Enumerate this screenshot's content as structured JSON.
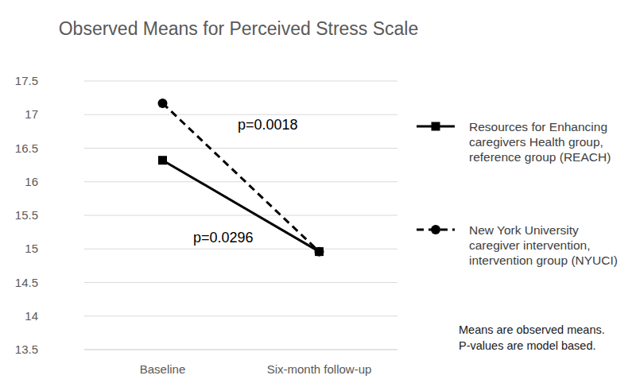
{
  "chart_data": {
    "type": "line",
    "title": "Observed Means for Perceived Stress Scale",
    "categories": [
      "Baseline",
      "Six-month follow-up"
    ],
    "series": [
      {
        "name": "Resources for Enhancing caregivers Health group, reference group (REACH)",
        "color": "#000000",
        "values": [
          16.32,
          14.96
        ],
        "marker": "square",
        "line_style": "solid",
        "annotation": "p=0.0296"
      },
      {
        "name": "New York University caregiver intervention, intervention group (NYUCI)",
        "color": "#000000",
        "values": [
          17.17,
          14.96
        ],
        "marker": "circle",
        "line_style": "dashed",
        "annotation": "p=0.0018"
      }
    ],
    "ylim": [
      13.5,
      17.5
    ],
    "yticks": [
      13.5,
      14,
      14.5,
      15,
      15.5,
      16,
      16.5,
      17,
      17.5
    ],
    "grid": true,
    "legend": "right",
    "notes": [
      "Means are observed means.",
      "P-values are model based."
    ]
  }
}
